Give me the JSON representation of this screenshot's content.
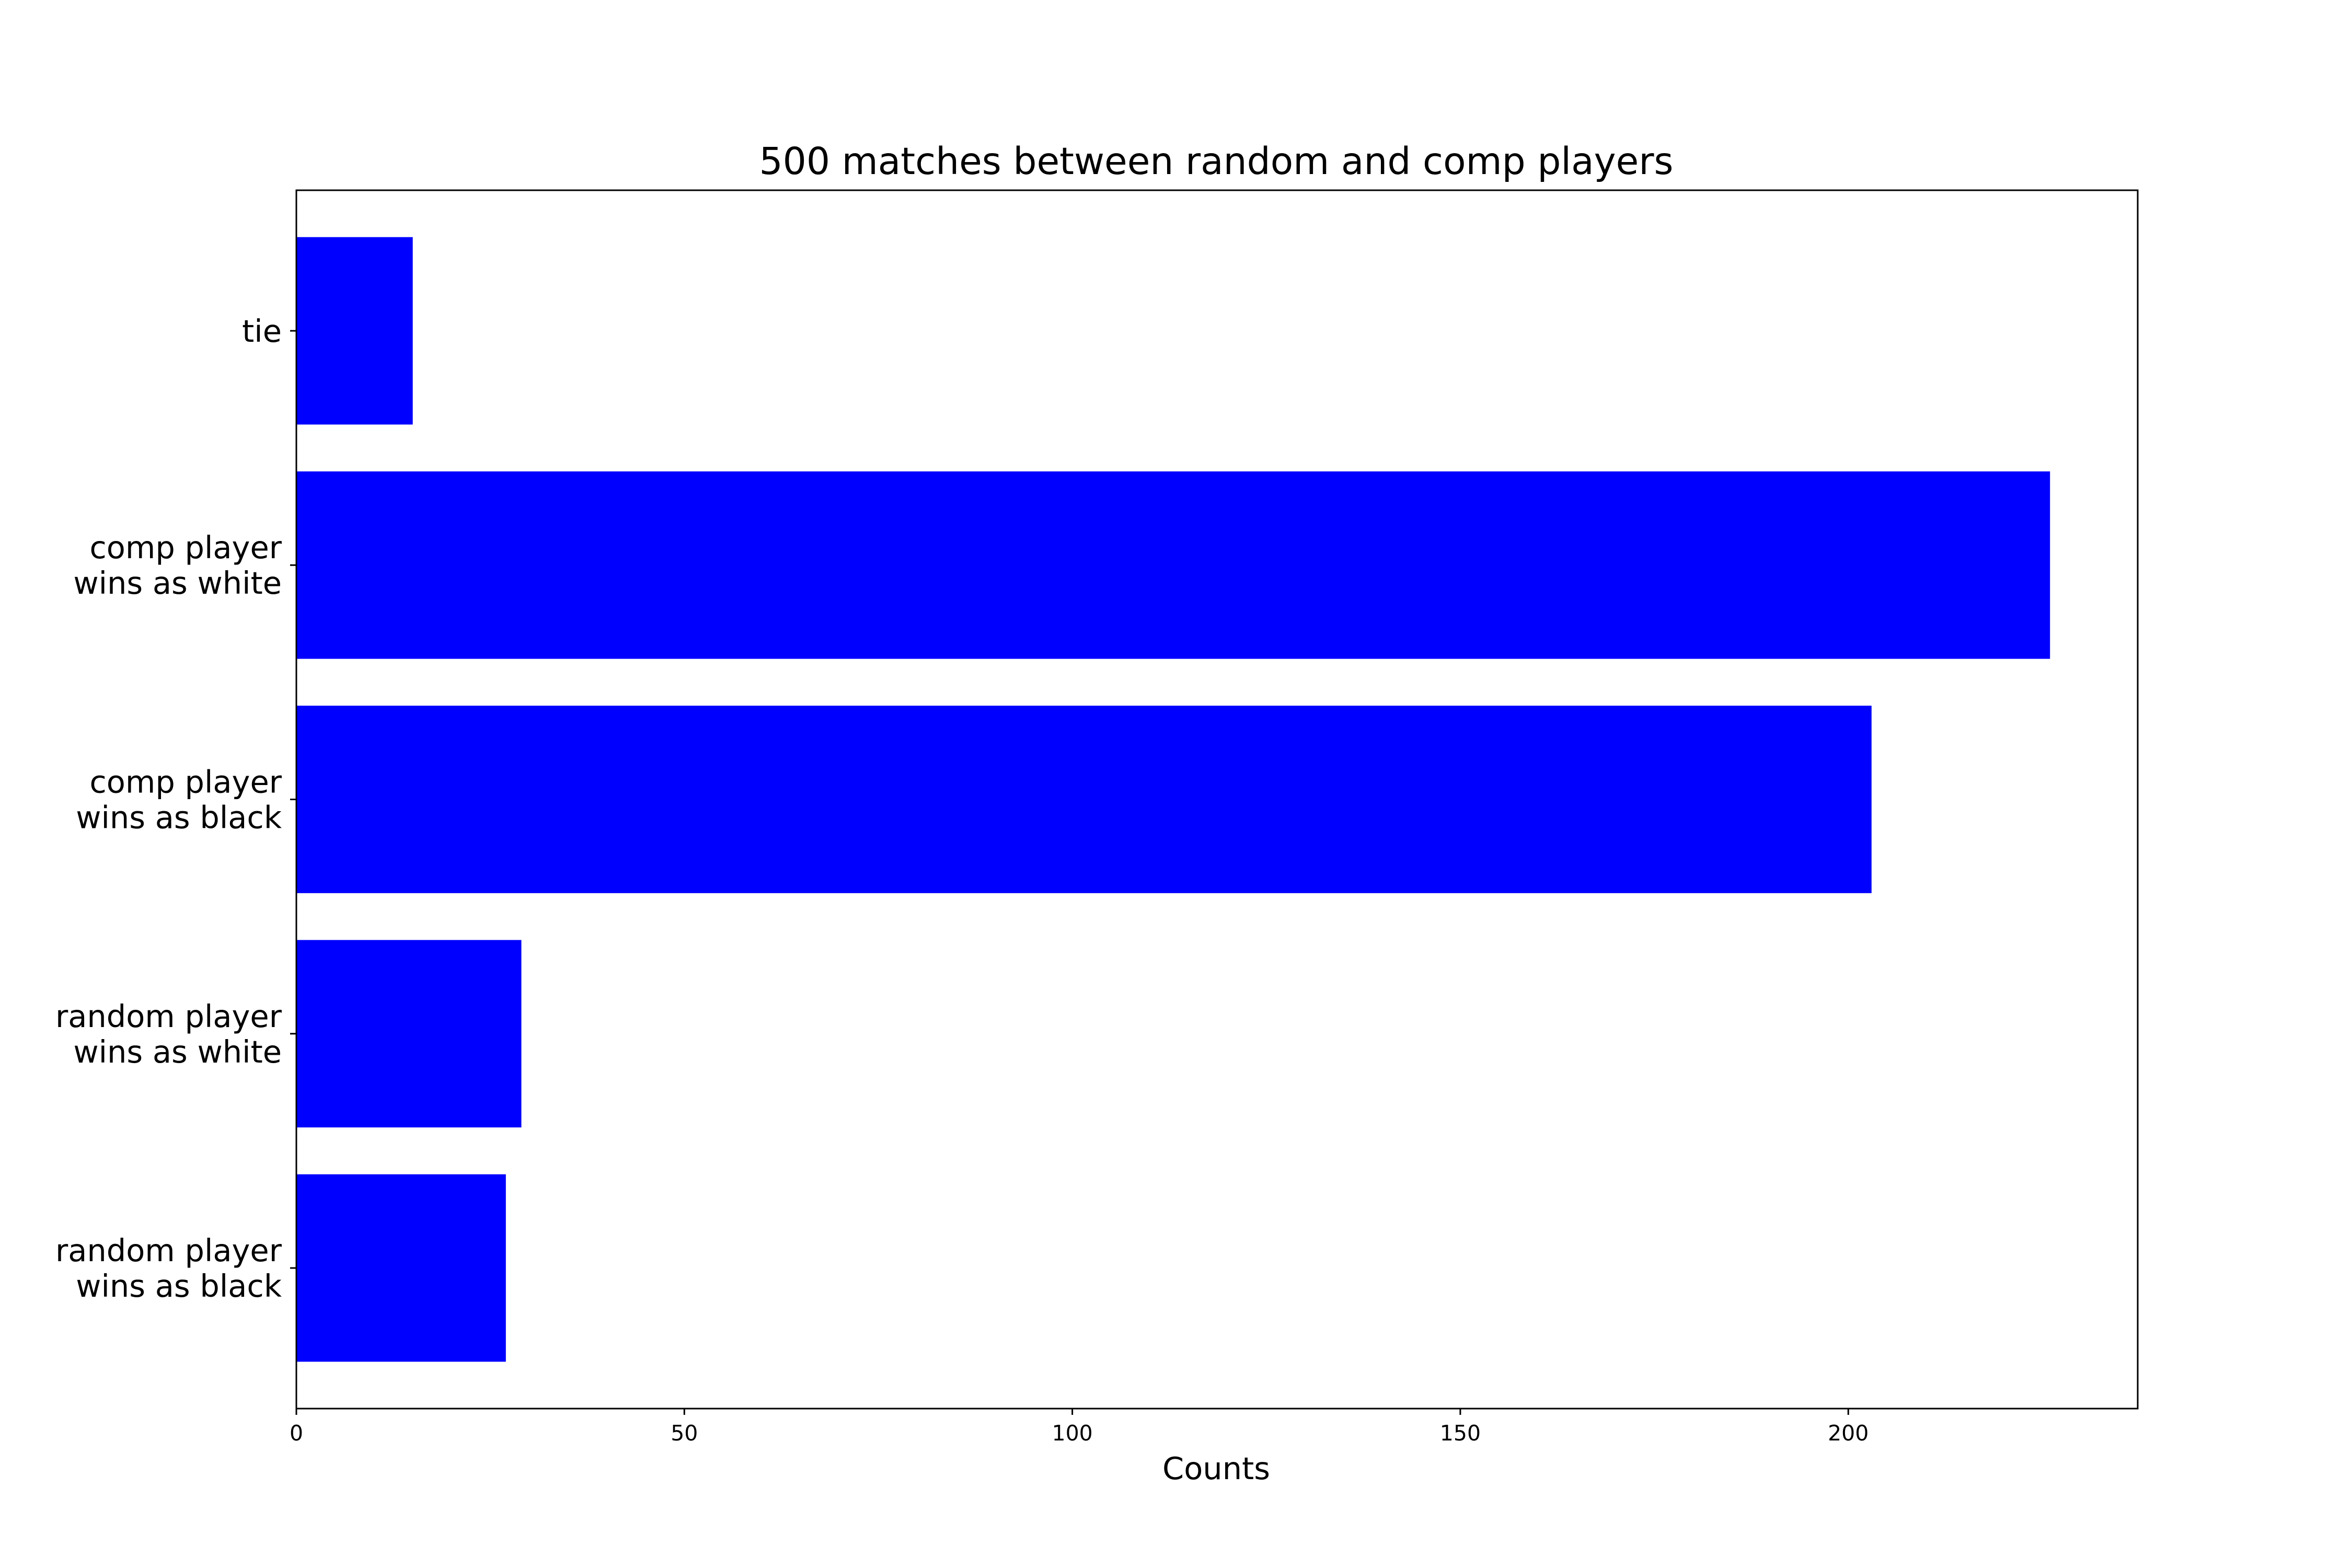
{
  "chart_data": {
    "type": "bar",
    "orientation": "horizontal",
    "title": "500 matches between random and comp players",
    "xlabel": "Counts",
    "ylabel": "",
    "categories": [
      "tie",
      "comp player\nwins as white",
      "comp player\nwins as black",
      "random player\nwins as white",
      "random player\nwins as black"
    ],
    "values": [
      15,
      226,
      203,
      29,
      27
    ],
    "xlim": [
      0,
      237.3
    ],
    "xticks": [
      0,
      50,
      100,
      150,
      200
    ],
    "bar_color": "#0000ff",
    "grid": false,
    "legend": "none"
  }
}
